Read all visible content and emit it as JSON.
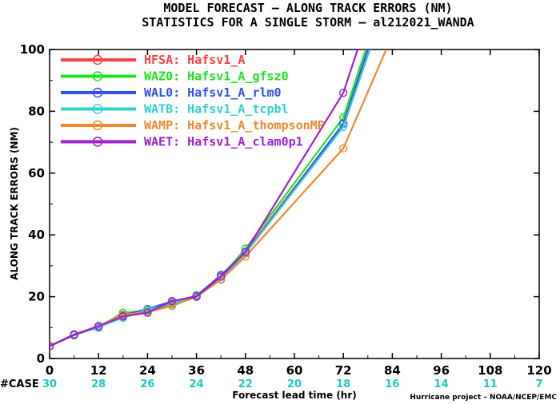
{
  "chart_data": {
    "type": "line",
    "title": "MODEL FORECAST – ALONG TRACK ERRORS (NM)",
    "subtitle": "STATISTICS FOR A SINGLE STORM – al212021_WANDA",
    "xlabel": "Forecast lead time (hr)",
    "ylabel": "ALONG TRACK ERRORS (NM)",
    "xlim": [
      0,
      120
    ],
    "ylim": [
      0,
      100
    ],
    "xticks": [
      0,
      12,
      24,
      36,
      48,
      60,
      72,
      84,
      96,
      108,
      120
    ],
    "yticks": [
      0,
      20,
      40,
      60,
      80,
      100
    ],
    "case_label": "#CASE",
    "case_counts": [
      30,
      28,
      26,
      24,
      22,
      20,
      18,
      16,
      14,
      11,
      7
    ],
    "case_color": "#1ec8c8",
    "credit": "Hurricane project – NOAA/NCEP/EMC",
    "legend_position": "top-left",
    "grid": false,
    "series": [
      {
        "name": "HFSA:  Hafsv1_A",
        "color": "#ff4040",
        "x": [
          0,
          6,
          12,
          18,
          24,
          30,
          36,
          42,
          48,
          72,
          78
        ],
        "y": [
          4,
          7.8,
          10.5,
          14,
          16,
          18,
          20,
          27,
          34.5,
          76,
          100
        ]
      },
      {
        "name": "WAZ0:  Hafsv1_A_gfsz0",
        "color": "#20e020",
        "x": [
          0,
          6,
          12,
          18,
          24,
          30,
          36,
          42,
          48,
          72,
          77.5
        ],
        "y": [
          4,
          7.5,
          10.2,
          14.8,
          15.5,
          17.5,
          20.5,
          26.5,
          35.5,
          78,
          100
        ]
      },
      {
        "name": "WAL0:  Hafsv1_A_rlm0",
        "color": "#3050f0",
        "x": [
          0,
          6,
          12,
          18,
          24,
          30,
          36,
          42,
          48,
          72,
          78
        ],
        "y": [
          4,
          7.8,
          10,
          14,
          16,
          18.5,
          20.2,
          27,
          34,
          76,
          100
        ]
      },
      {
        "name": "WATB:  Hafsv1_A_tcpbl",
        "color": "#30d0d0",
        "x": [
          0,
          6,
          12,
          18,
          24,
          30,
          36,
          42,
          48,
          72,
          78.5
        ],
        "y": [
          4,
          7.6,
          10.2,
          13.2,
          15.8,
          17.8,
          20,
          25.8,
          34,
          75,
          100
        ]
      },
      {
        "name": "WAMP:  Hafsv1_A_thompsonMP",
        "color": "#f08830",
        "x": [
          0,
          6,
          12,
          18,
          24,
          30,
          36,
          42,
          48,
          72,
          82.5
        ],
        "y": [
          4,
          7.6,
          10.5,
          14.2,
          15,
          17,
          20,
          25.5,
          33,
          68,
          100
        ]
      },
      {
        "name": "WAET:  Hafsv1_A_clam0p1",
        "color": "#a020d0",
        "x": [
          0,
          6,
          12,
          18,
          24,
          30,
          36,
          42,
          48,
          72,
          75.5
        ],
        "y": [
          4,
          7.6,
          10.5,
          13.6,
          14.8,
          18.6,
          20,
          26.5,
          34.5,
          86,
          100
        ]
      }
    ]
  }
}
